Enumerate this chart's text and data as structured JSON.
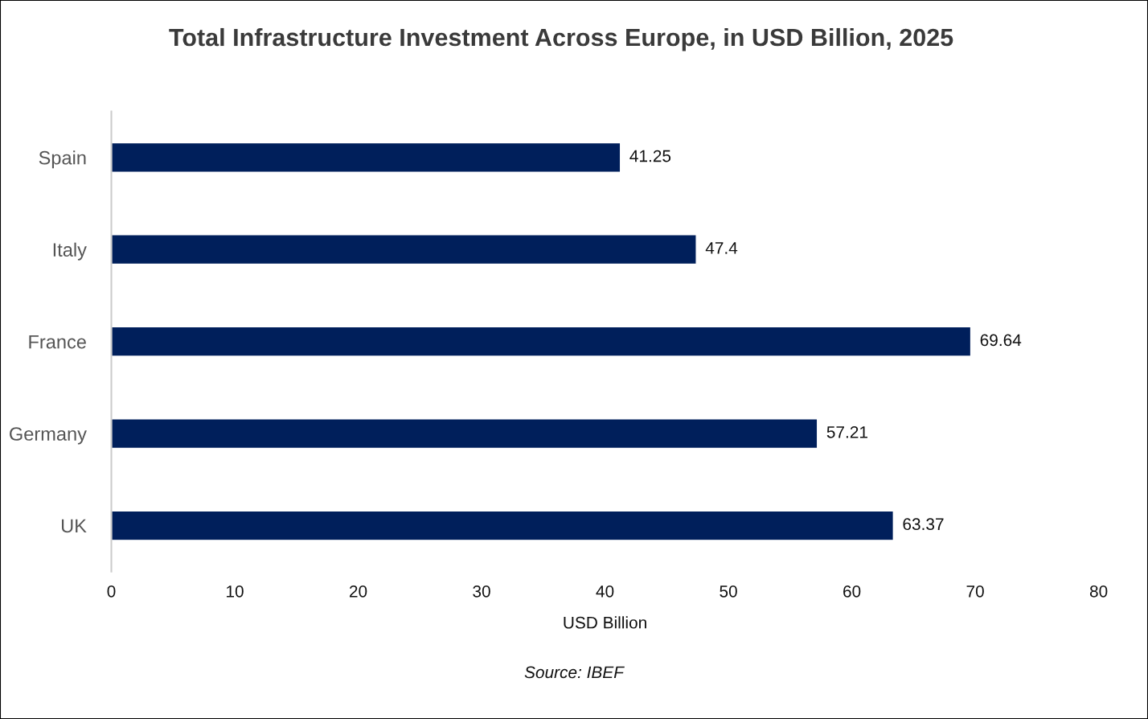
{
  "chart_data": {
    "type": "bar",
    "orientation": "horizontal",
    "title": "Total Infrastructure Investment Across Europe, in USD Billion, 2025",
    "categories": [
      "Spain",
      "Italy",
      "France",
      "Germany",
      "UK"
    ],
    "values": [
      41.25,
      47.4,
      69.64,
      57.21,
      63.37
    ],
    "color": "#001f5b",
    "xlabel": "USD Billion",
    "xlim": [
      0,
      80
    ],
    "xticks": [
      0,
      10,
      20,
      30,
      40,
      50,
      60,
      70,
      80
    ],
    "grid": false,
    "data_labels": true,
    "annotations": [
      "Source: IBEF"
    ]
  }
}
